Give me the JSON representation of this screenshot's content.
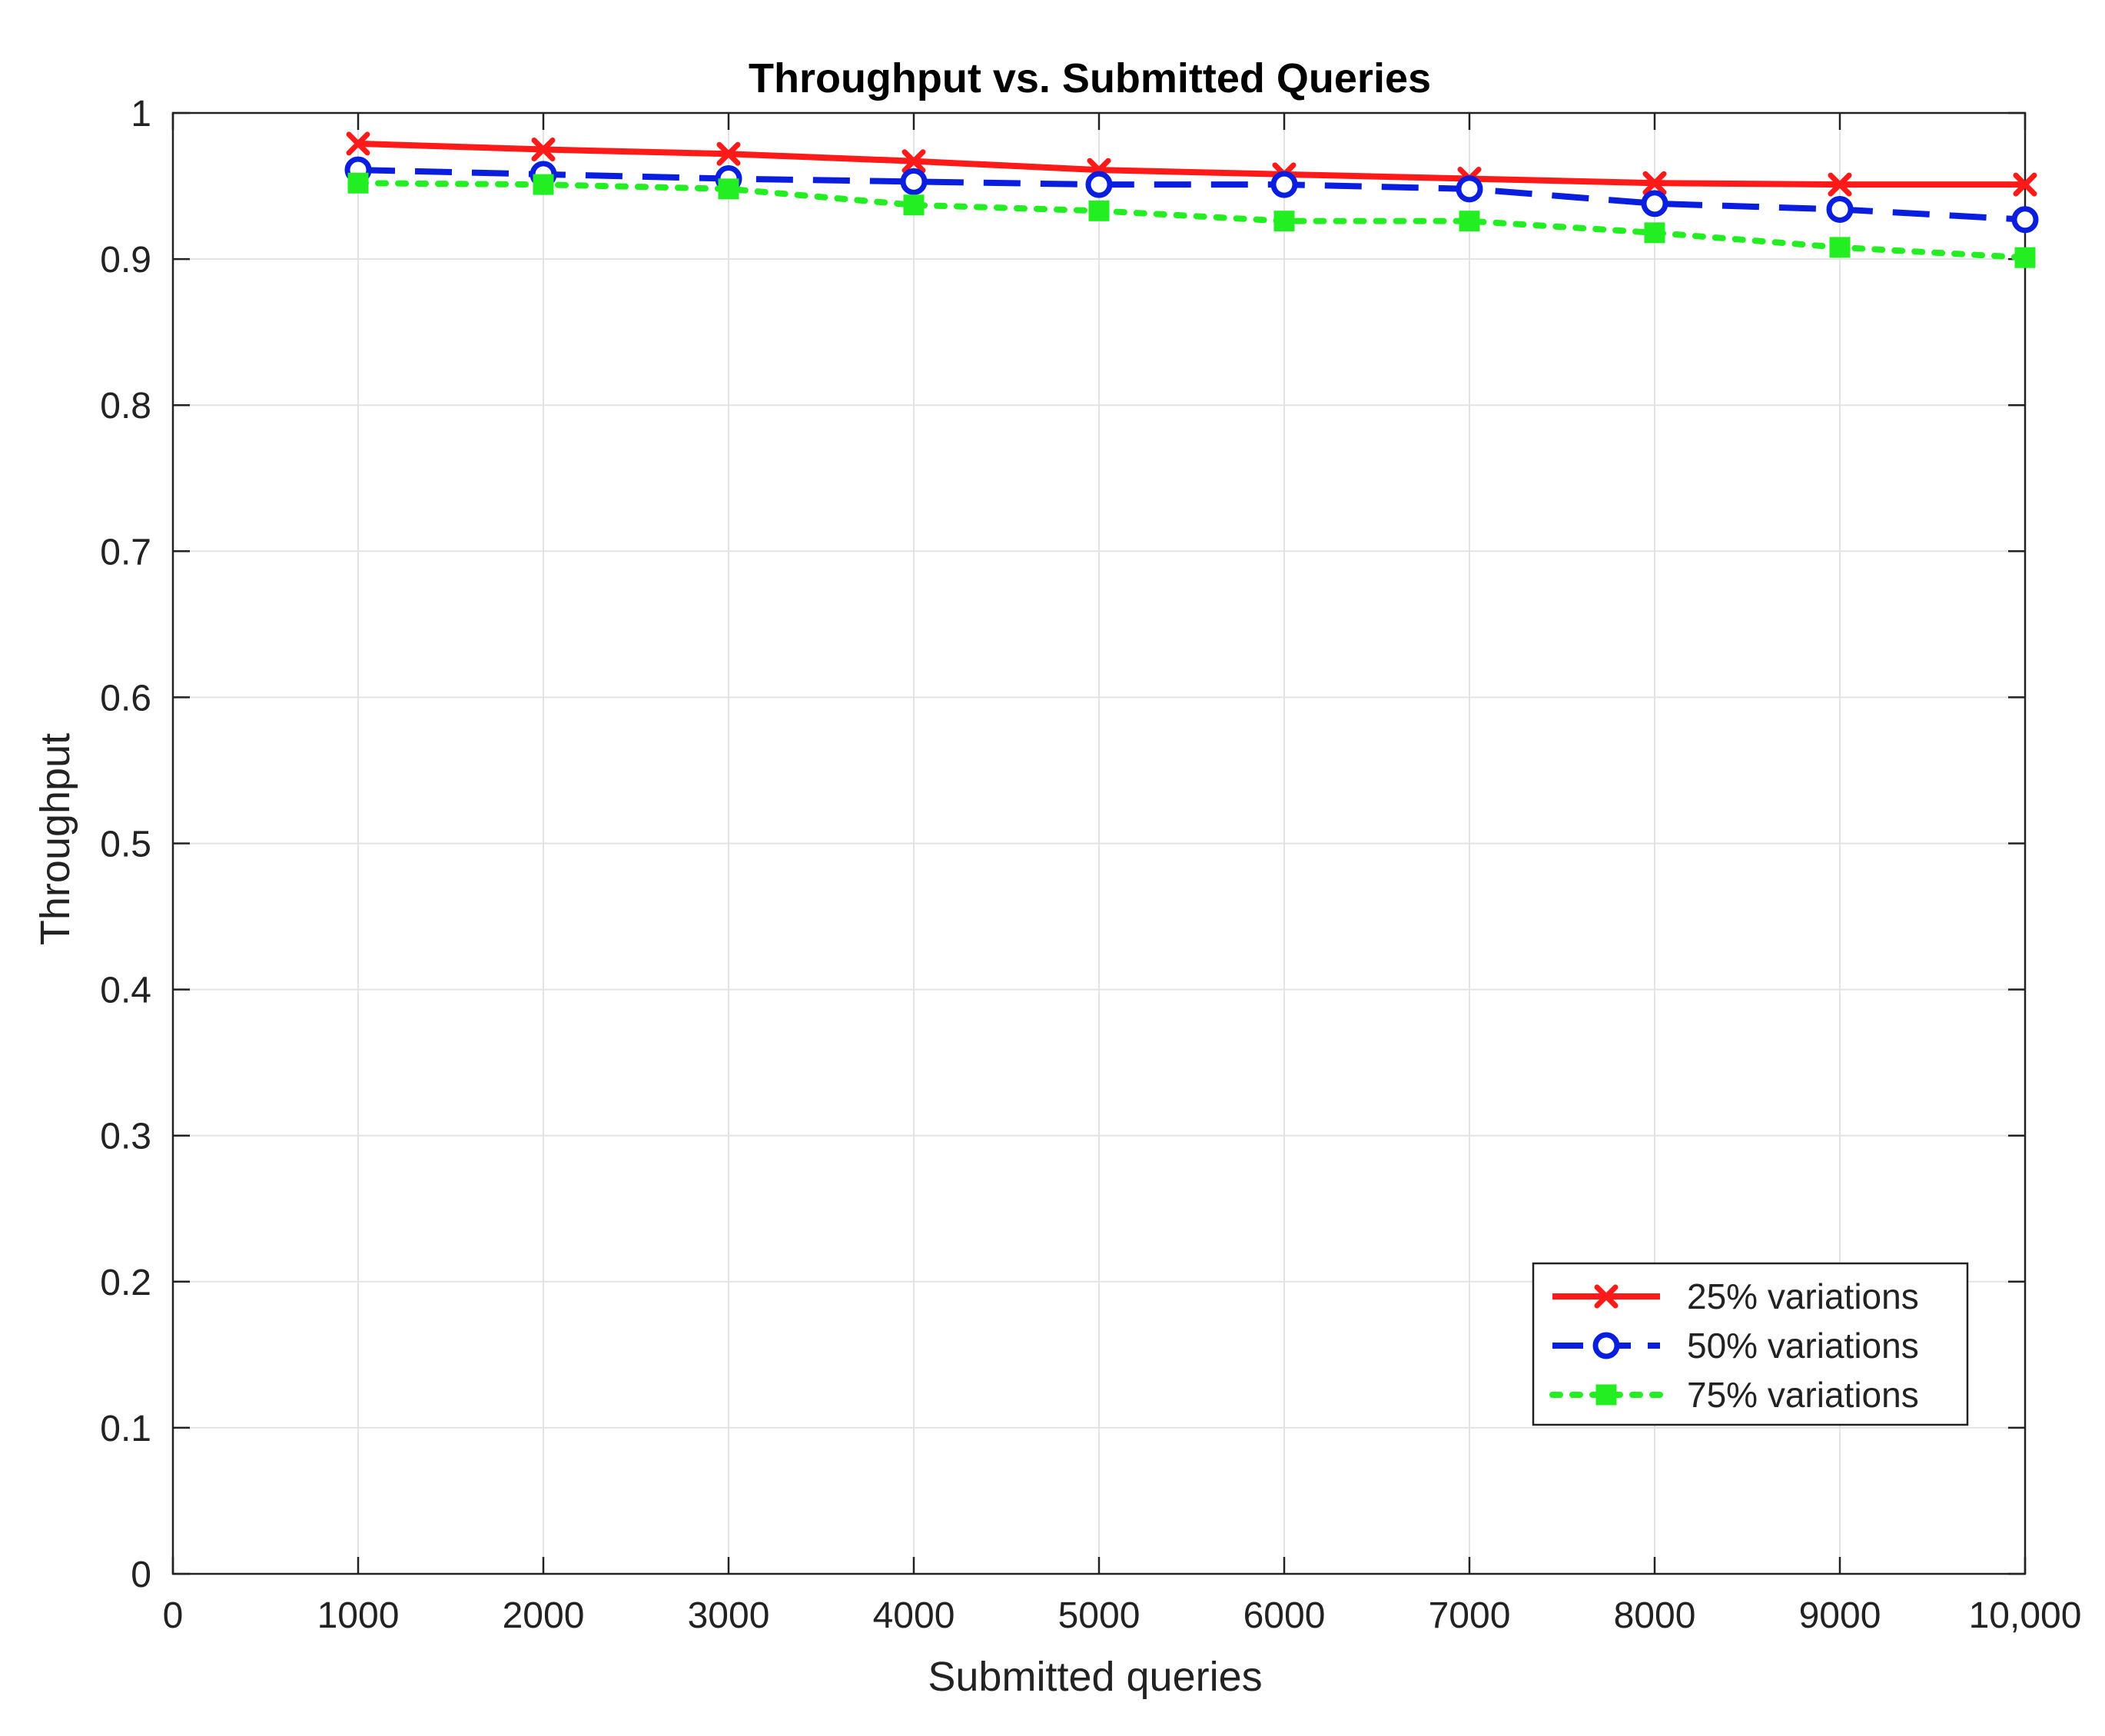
{
  "chart_data": {
    "type": "line",
    "title": "Throughput vs. Submitted Queries",
    "xlabel": "Submitted queries",
    "ylabel": "Throughput",
    "xlim": [
      0,
      10000
    ],
    "ylim": [
      0,
      1
    ],
    "x_ticks": [
      0,
      1000,
      2000,
      3000,
      4000,
      5000,
      6000,
      7000,
      8000,
      9000,
      10000
    ],
    "x_tick_labels": [
      "0",
      "1000",
      "2000",
      "3000",
      "4000",
      "5000",
      "6000",
      "7000",
      "8000",
      "9000",
      "10,000"
    ],
    "y_ticks": [
      0,
      0.1,
      0.2,
      0.3,
      0.4,
      0.5,
      0.6,
      0.7,
      0.8,
      0.9,
      1
    ],
    "y_tick_labels": [
      "0",
      "0.1",
      "0.2",
      "0.3",
      "0.4",
      "0.5",
      "0.6",
      "0.7",
      "0.8",
      "0.9",
      "1"
    ],
    "grid": true,
    "legend_position": "bottom-right",
    "x": [
      1000,
      2000,
      3000,
      4000,
      5000,
      6000,
      7000,
      8000,
      9000,
      10000
    ],
    "series": [
      {
        "name": "25% variations",
        "color": "#ff1a1a",
        "line_style": "solid",
        "marker": "x",
        "values": [
          0.979,
          0.975,
          0.972,
          0.967,
          0.961,
          0.958,
          0.955,
          0.952,
          0.951,
          0.951
        ]
      },
      {
        "name": "50% variations",
        "color": "#0a1ee0",
        "line_style": "dashed",
        "marker": "circle",
        "values": [
          0.961,
          0.958,
          0.955,
          0.953,
          0.951,
          0.951,
          0.948,
          0.938,
          0.934,
          0.927
        ]
      },
      {
        "name": "75% variations",
        "color": "#22ee22",
        "line_style": "dotted",
        "marker": "square",
        "values": [
          0.952,
          0.951,
          0.948,
          0.937,
          0.933,
          0.926,
          0.926,
          0.918,
          0.908,
          0.901
        ]
      }
    ]
  }
}
